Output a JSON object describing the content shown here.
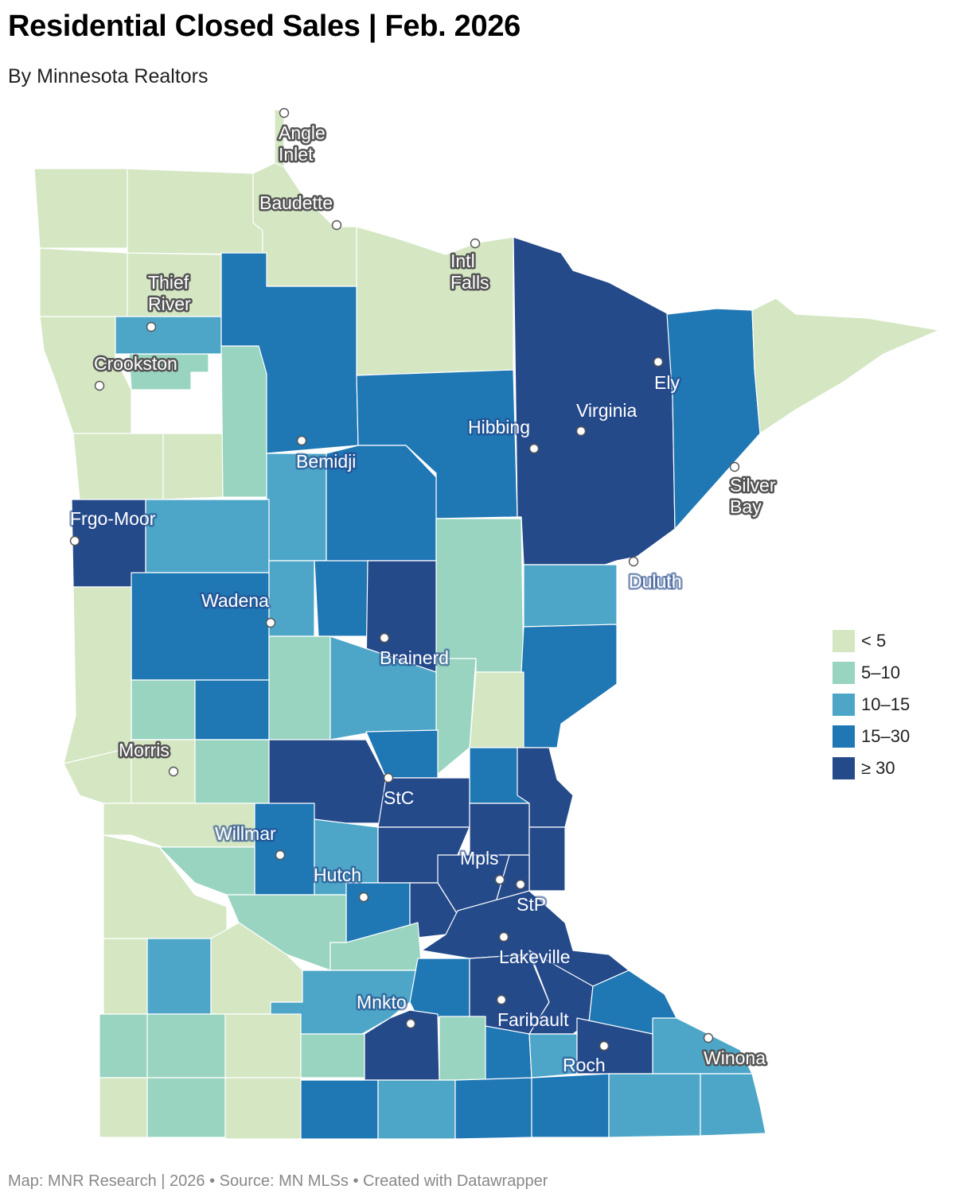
{
  "title": "Residential Closed Sales  |  Feb. 2026",
  "subtitle": "By Minnesota Realtors",
  "footer": "Map: MNR Research | 2026 • Source: MN MLSs • Created with Datawrapper",
  "colors": {
    "lt5": "#d4e6c2",
    "5to10": "#98d4bf",
    "10to15": "#4da6c8",
    "15to30": "#1f77b4",
    "ge30": "#254a8a"
  },
  "legend": [
    {
      "label": "< 5",
      "color_key": "lt5"
    },
    {
      "label": "5–10",
      "color_key": "5to10"
    },
    {
      "label": "10–15",
      "color_key": "10to15"
    },
    {
      "label": "15–30",
      "color_key": "15to30"
    },
    {
      "label": "≥ 30",
      "color_key": "ge30"
    }
  ],
  "cities": [
    {
      "name": "Angle Inlet",
      "label_lines": [
        "Angle",
        "Inlet"
      ],
      "category": "lt5"
    },
    {
      "name": "Baudette",
      "label_lines": [
        "Baudette"
      ],
      "category": "lt5"
    },
    {
      "name": "Intl Falls",
      "label_lines": [
        "Intl",
        "Falls"
      ],
      "category": "lt5"
    },
    {
      "name": "Thief River",
      "label_lines": [
        "Thief",
        "River"
      ],
      "category": "10to15"
    },
    {
      "name": "Crookston",
      "label_lines": [
        "Crookston"
      ],
      "category": "lt5"
    },
    {
      "name": "Ely",
      "label_lines": [
        "Ely"
      ],
      "category": "ge30"
    },
    {
      "name": "Virginia",
      "label_lines": [
        "Virginia"
      ],
      "category": "ge30"
    },
    {
      "name": "Hibbing",
      "label_lines": [
        "Hibbing"
      ],
      "category": "ge30"
    },
    {
      "name": "Bemidji",
      "label_lines": [
        "Bemidji"
      ],
      "category": "15to30"
    },
    {
      "name": "Silver Bay",
      "label_lines": [
        "Silver",
        "Bay"
      ],
      "category": "lt5"
    },
    {
      "name": "Frgo-Moor",
      "label_lines": [
        "Frgo-Moor"
      ],
      "category": "ge30"
    },
    {
      "name": "Duluth",
      "label_lines": [
        "Duluth"
      ],
      "category": "ge30"
    },
    {
      "name": "Wadena",
      "label_lines": [
        "Wadena"
      ],
      "category": "15to30"
    },
    {
      "name": "Brainerd",
      "label_lines": [
        "Brainerd"
      ],
      "category": "ge30"
    },
    {
      "name": "Morris",
      "label_lines": [
        "Morris"
      ],
      "category": "lt5"
    },
    {
      "name": "StC",
      "label_lines": [
        "StC"
      ],
      "category": "ge30"
    },
    {
      "name": "Willmar",
      "label_lines": [
        "Willmar"
      ],
      "category": "15to30"
    },
    {
      "name": "Hutch",
      "label_lines": [
        "Hutch"
      ],
      "category": "15to30"
    },
    {
      "name": "Mpls",
      "label_lines": [
        "Mpls"
      ],
      "category": "ge30"
    },
    {
      "name": "StP",
      "label_lines": [
        "StP"
      ],
      "category": "ge30"
    },
    {
      "name": "Lakeville",
      "label_lines": [
        "Lakeville"
      ],
      "category": "ge30"
    },
    {
      "name": "Mnkto",
      "label_lines": [
        "Mnkto"
      ],
      "category": "ge30"
    },
    {
      "name": "Faribault",
      "label_lines": [
        "Faribault"
      ],
      "category": "ge30"
    },
    {
      "name": "Roch",
      "label_lines": [
        "Roch"
      ],
      "category": "ge30"
    },
    {
      "name": "Winona",
      "label_lines": [
        "Winona"
      ],
      "category": "10to15"
    }
  ]
}
